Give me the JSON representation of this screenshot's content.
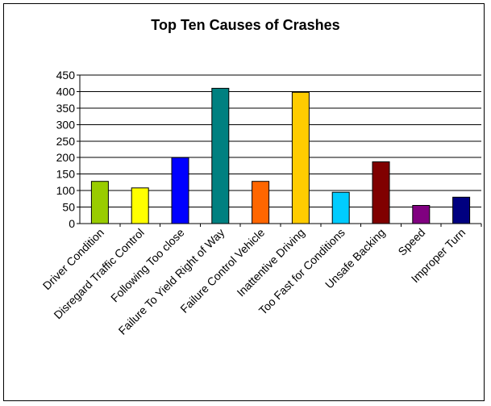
{
  "chart_data": {
    "type": "bar",
    "title": "Top Ten Causes of Crashes",
    "xlabel": "",
    "ylabel": "",
    "ylim": [
      0,
      450
    ],
    "yticks": [
      0,
      50,
      100,
      150,
      200,
      250,
      300,
      350,
      400,
      450
    ],
    "grid": true,
    "legend": "none",
    "categories": [
      "Driver Condition",
      "Disregard Traffic Control",
      "Following Too close",
      "Failure To Yield Right of Way",
      "Failure Control Vehicle",
      "Inattentive Driving",
      "Too Fast for Conditions",
      "Unsafe Backing",
      "Speed",
      "Improper Turn"
    ],
    "values": [
      128,
      108,
      200,
      410,
      128,
      398,
      95,
      187,
      55,
      80
    ],
    "colors": [
      "#99CC00",
      "#FFFF00",
      "#0000FF",
      "#008080",
      "#FF6600",
      "#FFCC00",
      "#00CCFF",
      "#800000",
      "#800080",
      "#000080"
    ]
  }
}
